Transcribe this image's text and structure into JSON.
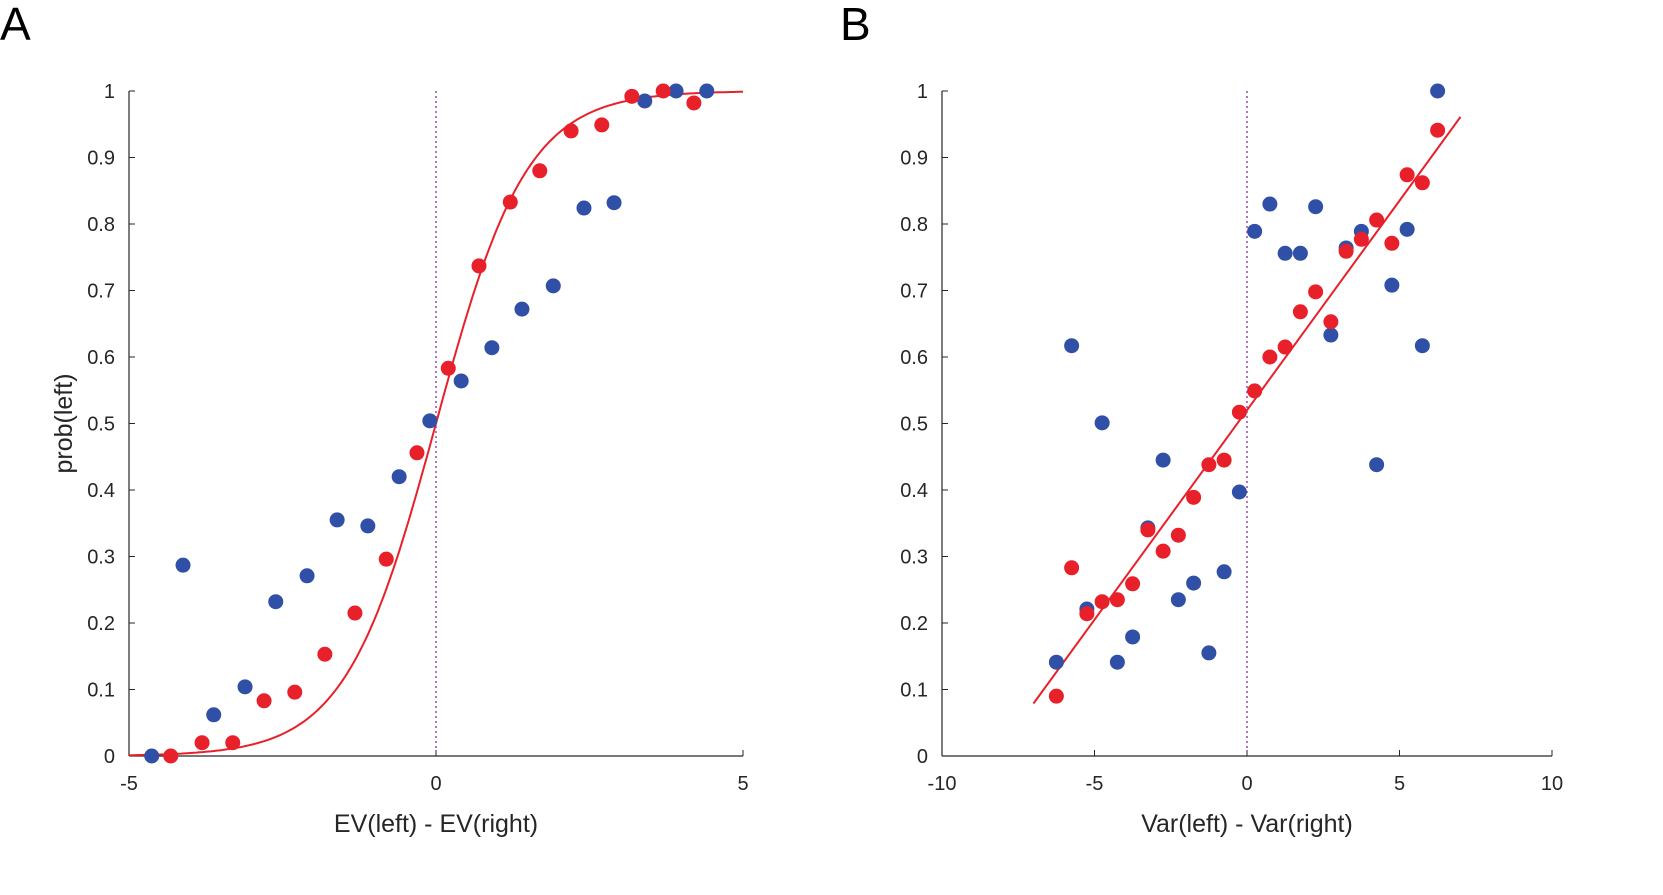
{
  "chart_data": [
    {
      "type": "scatter",
      "panel_label": "A",
      "xlabel": "EV(left) - EV(right)",
      "ylabel": "prob(left)",
      "xlim": [
        -5,
        5
      ],
      "ylim": [
        0,
        1
      ],
      "xticks": [
        "-5",
        "0",
        "5"
      ],
      "yticks": [
        "0",
        "0.1",
        "0.2",
        "0.3",
        "0.4",
        "0.5",
        "0.6",
        "0.7",
        "0.8",
        "0.9",
        "1"
      ],
      "reference_line_x": 0,
      "series": [
        {
          "name": "blue",
          "color": "#3050a8",
          "x": [
            -4.63,
            -4.12,
            -3.62,
            -3.11,
            -2.61,
            -2.1,
            -1.61,
            -1.11,
            -0.6,
            -0.1,
            0.41,
            0.91,
            1.4,
            1.91,
            2.41,
            2.9,
            3.4,
            3.91,
            4.41
          ],
          "y": [
            0.0,
            0.287,
            0.062,
            0.104,
            0.232,
            0.271,
            0.355,
            0.346,
            0.42,
            0.504,
            0.564,
            0.614,
            0.672,
            0.707,
            0.824,
            0.832,
            0.985,
            1.0,
            1.0
          ]
        },
        {
          "name": "red",
          "color": "#e8202a",
          "x": [
            -4.32,
            -3.81,
            -3.31,
            -2.8,
            -2.3,
            -1.81,
            -1.32,
            -0.81,
            -0.31,
            0.2,
            0.7,
            1.21,
            1.69,
            2.2,
            2.7,
            3.19,
            3.7,
            4.2
          ],
          "y": [
            0.0,
            0.02,
            0.02,
            0.083,
            0.096,
            0.153,
            0.215,
            0.296,
            0.456,
            0.583,
            0.737,
            0.833,
            0.88,
            0.94,
            0.949,
            0.992,
            1.0,
            0.982
          ]
        }
      ],
      "fit": {
        "type": "logistic",
        "color": "#e8202a",
        "slope": 1.35,
        "midpoint": 0,
        "xrange": [
          -5,
          5
        ]
      }
    },
    {
      "type": "scatter",
      "panel_label": "B",
      "xlabel": "Var(left) - Var(right)",
      "ylabel": "",
      "xlim": [
        -10,
        10
      ],
      "ylim": [
        0,
        1
      ],
      "xticks": [
        "-10",
        "-5",
        "0",
        "5",
        "10"
      ],
      "yticks": [
        "0",
        "0.1",
        "0.2",
        "0.3",
        "0.4",
        "0.5",
        "0.6",
        "0.7",
        "0.8",
        "0.9",
        "1"
      ],
      "reference_line_x": 0,
      "series": [
        {
          "name": "blue",
          "color": "#3050a8",
          "x": [
            -6.25,
            -5.75,
            -5.25,
            -4.75,
            -4.25,
            -3.75,
            -3.25,
            -2.75,
            -2.25,
            -1.75,
            -1.25,
            -0.75,
            -0.25,
            0.25,
            0.75,
            1.25,
            1.75,
            2.25,
            2.75,
            3.25,
            3.75,
            4.25,
            4.75,
            5.25,
            5.75,
            6.25
          ],
          "y": [
            0.141,
            0.617,
            0.221,
            0.501,
            0.141,
            0.179,
            0.343,
            0.445,
            0.235,
            0.26,
            0.155,
            0.277,
            0.397,
            0.789,
            0.83,
            0.756,
            0.756,
            0.826,
            0.633,
            0.764,
            0.789,
            0.438,
            0.708,
            0.792,
            0.617,
            1.0
          ]
        },
        {
          "name": "red",
          "color": "#e8202a",
          "x": [
            -6.25,
            -5.75,
            -5.25,
            -4.75,
            -4.25,
            -3.75,
            -3.25,
            -2.75,
            -2.25,
            -1.75,
            -1.25,
            -0.75,
            -0.25,
            0.25,
            0.75,
            1.25,
            1.75,
            2.25,
            2.75,
            3.25,
            3.75,
            4.25,
            4.75,
            5.25,
            5.75,
            6.25
          ],
          "y": [
            0.09,
            0.283,
            0.214,
            0.232,
            0.235,
            0.259,
            0.34,
            0.308,
            0.332,
            0.389,
            0.438,
            0.445,
            0.517,
            0.549,
            0.6,
            0.615,
            0.668,
            0.698,
            0.653,
            0.759,
            0.777,
            0.806,
            0.771,
            0.874,
            0.862,
            0.941
          ]
        }
      ],
      "fit": {
        "type": "linear",
        "color": "#e8202a",
        "intercept": 0.52,
        "slope": 0.063,
        "xrange": [
          -7,
          7
        ]
      }
    }
  ]
}
